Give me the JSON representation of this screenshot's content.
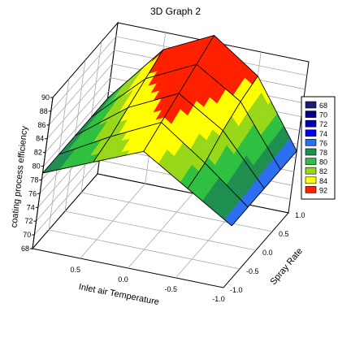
{
  "chart_data": {
    "type": "surface3d",
    "title": "3D Graph 2",
    "xlabel": "Inlet air Temperature",
    "ylabel": "Spray Rate",
    "zlabel": "coating process efficiency",
    "xticks": [
      "0.5",
      "0.0",
      "-0.5",
      "-1.0"
    ],
    "yticks": [
      "-1.0",
      "-0.5",
      "0.0",
      "0.5",
      "1.0"
    ],
    "zticks": [
      "68",
      "70",
      "72",
      "74",
      "76",
      "78",
      "80",
      "82",
      "84",
      "86",
      "88",
      "90"
    ],
    "xlim": [
      1,
      -1
    ],
    "ylim": [
      -1,
      1
    ],
    "zlim": [
      68,
      90
    ],
    "grid": true,
    "legend_position": "right",
    "legend": [
      {
        "label": "68",
        "color": "#1c1c78"
      },
      {
        "label": "70",
        "color": "#000090"
      },
      {
        "label": "72",
        "color": "#0000b8"
      },
      {
        "label": "74",
        "color": "#0000f0"
      },
      {
        "label": "76",
        "color": "#2c6ef0"
      },
      {
        "label": "78",
        "color": "#1f8f50"
      },
      {
        "label": "80",
        "color": "#2fc040"
      },
      {
        "label": "82",
        "color": "#98d818"
      },
      {
        "label": "84",
        "color": "#ffff00"
      },
      {
        "label": "92",
        "color": "#ff2000"
      }
    ],
    "surface": {
      "x": [
        1,
        0.5,
        0,
        -0.5,
        -1
      ],
      "y": [
        -1,
        -0.5,
        0,
        0.5,
        1
      ],
      "z": [
        [
          79,
          79,
          79,
          79,
          79
        ],
        [
          82,
          83,
          84.5,
          86,
          87.5
        ],
        [
          85,
          86.5,
          88,
          89.5,
          91
        ],
        [
          81,
          82,
          84,
          85.5,
          86.5
        ],
        [
          77,
          77,
          77,
          77,
          77
        ]
      ]
    }
  }
}
